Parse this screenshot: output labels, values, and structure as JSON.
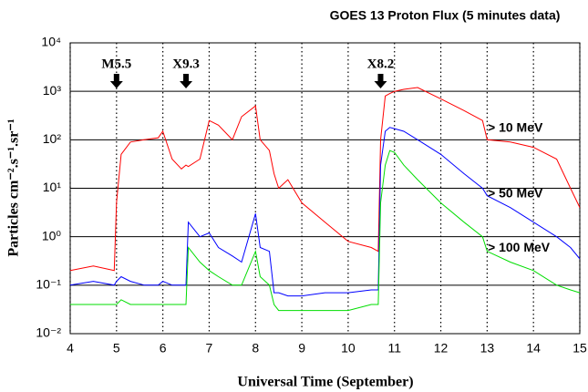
{
  "chart_data": {
    "type": "line",
    "title": "GOES 13 Proton Flux (5 minutes data)",
    "x_label": "Universal Time (September)",
    "y_label": "Particles cm⁻².s⁻¹.sr⁻¹",
    "ylog": true,
    "grid": true,
    "xlim": [
      4,
      15
    ],
    "xticks": [
      4,
      5,
      6,
      7,
      8,
      9,
      10,
      11,
      12,
      13,
      14,
      15
    ],
    "ylim": [
      0.01,
      10000
    ],
    "yticks": [
      {
        "value": 0.01,
        "label": "10⁻²"
      },
      {
        "value": 0.1,
        "label": "10⁻¹"
      },
      {
        "value": 1,
        "label": "10⁰"
      },
      {
        "value": 10,
        "label": "10¹"
      },
      {
        "value": 100,
        "label": "10²"
      },
      {
        "value": 1000,
        "label": "10³"
      },
      {
        "value": 10000,
        "label": "10⁴"
      }
    ],
    "annotations": [
      {
        "text": "M5.5",
        "x": 5
      },
      {
        "text": "X9.3",
        "x": 6.5
      },
      {
        "text": "X8.2",
        "x": 10.7
      }
    ],
    "x": [
      4,
      4.5,
      4.95,
      5.0,
      5.1,
      5.3,
      5.6,
      5.9,
      6.0,
      6.2,
      6.4,
      6.5,
      6.55,
      6.8,
      7.0,
      7.2,
      7.5,
      7.7,
      8.0,
      8.1,
      8.3,
      8.4,
      8.5,
      8.7,
      9.0,
      9.5,
      10.0,
      10.5,
      10.65,
      10.7,
      10.8,
      10.9,
      11.0,
      11.2,
      11.5,
      12.0,
      12.5,
      12.9,
      13.0,
      13.5,
      14.0,
      14.5,
      14.8,
      15.0
    ],
    "series": [
      {
        "name": "> 10 MeV",
        "color": "#ff0000",
        "values": [
          0.2,
          0.25,
          0.2,
          5,
          50,
          90,
          100,
          110,
          150,
          40,
          25,
          30,
          28,
          40,
          250,
          200,
          100,
          300,
          500,
          100,
          60,
          20,
          10,
          15,
          5,
          2,
          0.8,
          0.6,
          0.5,
          100,
          800,
          900,
          1000,
          1100,
          1200,
          700,
          400,
          250,
          100,
          90,
          70,
          40,
          10,
          4
        ]
      },
      {
        "name": "> 50 MeV",
        "color": "#0000ff",
        "values": [
          0.1,
          0.12,
          0.1,
          0.12,
          0.15,
          0.12,
          0.1,
          0.1,
          0.12,
          0.1,
          0.1,
          0.1,
          2,
          1,
          1.2,
          0.6,
          0.4,
          0.3,
          3,
          0.6,
          0.5,
          0.07,
          0.07,
          0.06,
          0.06,
          0.07,
          0.07,
          0.08,
          0.08,
          30,
          150,
          180,
          170,
          150,
          100,
          50,
          20,
          10,
          7,
          4,
          2,
          1,
          0.6,
          0.35
        ]
      },
      {
        "name": "> 100 MeV",
        "color": "#00dd00",
        "values": [
          0.04,
          0.04,
          0.04,
          0.04,
          0.05,
          0.04,
          0.04,
          0.04,
          0.04,
          0.04,
          0.04,
          0.04,
          0.6,
          0.3,
          0.2,
          0.15,
          0.1,
          0.1,
          0.5,
          0.15,
          0.1,
          0.04,
          0.03,
          0.03,
          0.03,
          0.03,
          0.03,
          0.04,
          0.04,
          5,
          30,
          60,
          55,
          30,
          15,
          5,
          2,
          1,
          0.5,
          0.3,
          0.2,
          0.1,
          0.08,
          0.07
        ]
      }
    ]
  }
}
